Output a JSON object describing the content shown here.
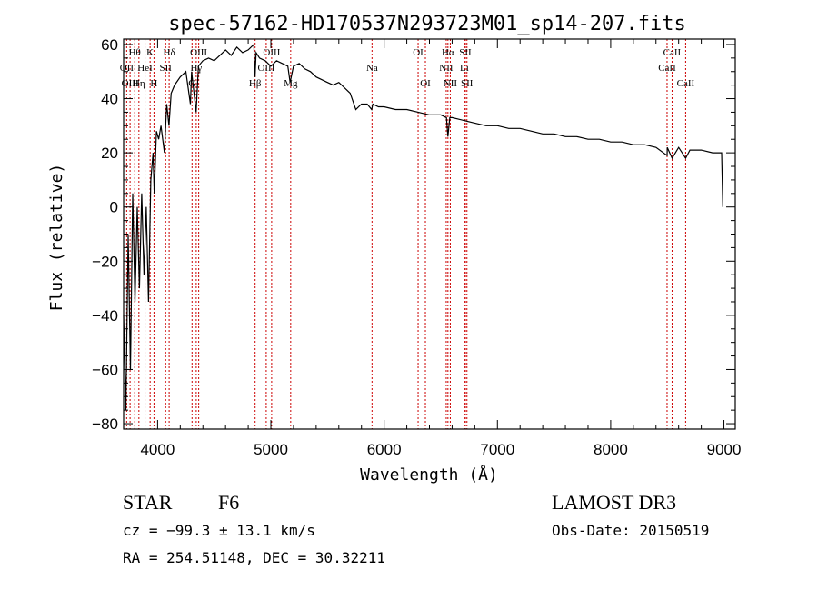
{
  "chart_data": {
    "type": "line",
    "title": "spec-57162-HD170537N293723M01_sp14-207.fits",
    "xlabel": "Wavelength (Å)",
    "ylabel": "Flux (relative)",
    "xlim": [
      3700,
      9100
    ],
    "ylim": [
      -82,
      62
    ],
    "x_ticks": [
      4000,
      5000,
      6000,
      7000,
      8000,
      9000
    ],
    "x_tick_labels": [
      "4000",
      "5000",
      "6000",
      "7000",
      "8000",
      "9000"
    ],
    "y_ticks": [
      -80,
      -60,
      -40,
      -20,
      0,
      20,
      40,
      60
    ],
    "y_tick_labels": [
      "−80",
      "−60",
      "−40",
      "−20",
      "0",
      "20",
      "40",
      "60"
    ],
    "series": [
      {
        "name": "spectrum",
        "x": [
          3700,
          3720,
          3740,
          3760,
          3780,
          3800,
          3820,
          3840,
          3860,
          3880,
          3900,
          3920,
          3940,
          3960,
          3970,
          3990,
          4010,
          4030,
          4060,
          4080,
          4100,
          4120,
          4150,
          4200,
          4250,
          4290,
          4300,
          4340,
          4360,
          4400,
          4450,
          4500,
          4550,
          4600,
          4650,
          4700,
          4750,
          4800,
          4850,
          4860,
          4870,
          4900,
          4950,
          5000,
          5050,
          5100,
          5150,
          5170,
          5200,
          5250,
          5300,
          5350,
          5400,
          5450,
          5500,
          5550,
          5600,
          5650,
          5700,
          5750,
          5800,
          5850,
          5890,
          5900,
          5950,
          6000,
          6100,
          6200,
          6300,
          6400,
          6500,
          6550,
          6563,
          6580,
          6600,
          6700,
          6800,
          6900,
          7000,
          7100,
          7200,
          7300,
          7400,
          7500,
          7600,
          7700,
          7800,
          7900,
          8000,
          8100,
          8200,
          8300,
          8400,
          8498,
          8500,
          8542,
          8600,
          8662,
          8700,
          8800,
          8900,
          8980,
          8990
        ],
        "y": [
          -40,
          -75,
          -10,
          -60,
          5,
          -35,
          0,
          -30,
          5,
          -25,
          0,
          -35,
          10,
          20,
          5,
          28,
          25,
          30,
          20,
          38,
          30,
          42,
          45,
          48,
          50,
          38,
          50,
          35,
          52,
          54,
          55,
          54,
          56,
          58,
          56,
          59,
          57,
          58,
          60,
          48,
          57,
          55,
          54,
          52,
          54,
          53,
          52,
          46,
          52,
          53,
          51,
          50,
          48,
          47,
          46,
          45,
          46,
          44,
          42,
          36,
          38,
          38,
          36,
          38,
          37,
          37,
          36,
          36,
          35,
          34,
          34,
          33,
          26,
          33,
          33,
          32,
          31,
          30,
          30,
          29,
          29,
          28,
          27,
          27,
          26,
          26,
          25,
          25,
          24,
          24,
          23,
          23,
          22,
          19,
          22,
          18,
          22,
          18,
          21,
          21,
          20,
          20,
          0
        ]
      }
    ],
    "line_markers": [
      {
        "label": "Hθ",
        "x": 3798,
        "row": 0
      },
      {
        "label": "OII",
        "x": 3727,
        "row": 1
      },
      {
        "label": "OIII",
        "x": 3757,
        "row": 2
      },
      {
        "label": "Hη",
        "x": 3835,
        "row": 2
      },
      {
        "label": "HeI",
        "x": 3889,
        "row": 1
      },
      {
        "label": "K",
        "x": 3934,
        "row": 0
      },
      {
        "label": "H",
        "x": 3968,
        "row": 2
      },
      {
        "label": "SII",
        "x": 4071,
        "row": 1
      },
      {
        "label": "Hδ",
        "x": 4102,
        "row": 0
      },
      {
        "label": "OIII",
        "x": 4363,
        "row": 0
      },
      {
        "label": "Hγ",
        "x": 4341,
        "row": 1
      },
      {
        "label": "G",
        "x": 4304,
        "row": 2
      },
      {
        "label": "Hβ",
        "x": 4861,
        "row": 2
      },
      {
        "label": "OIII",
        "x": 4959,
        "row": 1
      },
      {
        "label": "OIII",
        "x": 5007,
        "row": 0
      },
      {
        "label": "Mg",
        "x": 5175,
        "row": 2
      },
      {
        "label": "Na",
        "x": 5893,
        "row": 1
      },
      {
        "label": "OI",
        "x": 6300,
        "row": 0
      },
      {
        "label": "OI",
        "x": 6364,
        "row": 2
      },
      {
        "label": "Hα",
        "x": 6563,
        "row": 0
      },
      {
        "label": "NII",
        "x": 6548,
        "row": 1
      },
      {
        "label": "NII",
        "x": 6584,
        "row": 2
      },
      {
        "label": "SII",
        "x": 6717,
        "row": 0
      },
      {
        "label": "Li",
        "x": 6708,
        "row": 1
      },
      {
        "label": "SII",
        "x": 6731,
        "row": 2
      },
      {
        "label": "CaII",
        "x": 8542,
        "row": 0
      },
      {
        "label": "CaII",
        "x": 8498,
        "row": 1
      },
      {
        "label": "CaII",
        "x": 8662,
        "row": 2
      }
    ]
  },
  "info": {
    "object_class": "STAR",
    "subclass": "F6",
    "survey": "LAMOST DR3",
    "redshift_line": "cz = −99.3 ± 13.1 km/s",
    "obs_date_line": "Obs-Date: 20150519",
    "coords_line": "RA = 254.51148, DEC =  30.32211"
  },
  "colors": {
    "spectrum": "#000000",
    "marker_line": "#cc0000",
    "axis": "#000000"
  }
}
